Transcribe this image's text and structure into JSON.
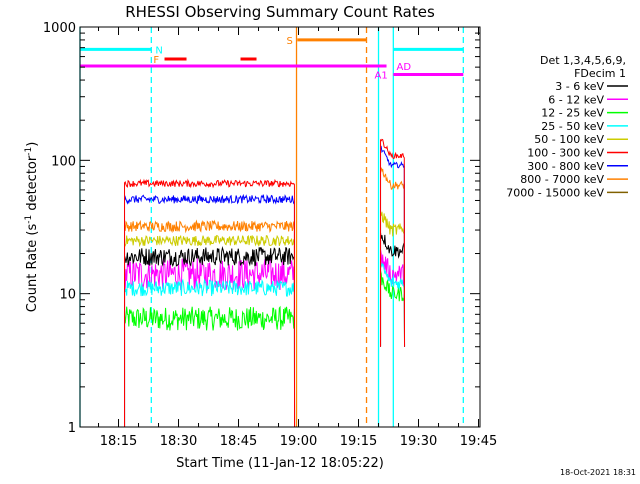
{
  "chart_data": {
    "type": "line",
    "title": "RHESSI Observing Summary Count Rates",
    "xlabel": "Start Time (11-Jan-12 18:05:22)",
    "ylabel_main": "Count Rate (s",
    "ylabel_sup1": "-1",
    "ylabel_mid": " detector",
    "ylabel_sup2": "-1",
    "ylabel_end": ")",
    "yscale": "log",
    "xlim_minutes": [
      5.37,
      105.37
    ],
    "ylim": [
      1,
      1000
    ],
    "x_ticks": [
      {
        "label": "18:15",
        "t": 15
      },
      {
        "label": "18:30",
        "t": 30
      },
      {
        "label": "18:45",
        "t": 45
      },
      {
        "label": "19:00",
        "t": 60
      },
      {
        "label": "19:15",
        "t": 75
      },
      {
        "label": "19:30",
        "t": 90
      },
      {
        "label": "19:45",
        "t": 105
      }
    ],
    "y_ticks": [
      {
        "label": "1",
        "v": 1
      },
      {
        "label": "10",
        "v": 10
      },
      {
        "label": "100",
        "v": 100
      },
      {
        "label": "1000",
        "v": 1000
      }
    ],
    "legend": {
      "header1": "Det 1,3,4,5,6,9,",
      "header2": "FDecim 1",
      "entries": [
        {
          "label": "3 - 6 keV",
          "color": "#000000"
        },
        {
          "label": "6 - 12 keV",
          "color": "#ff00ff"
        },
        {
          "label": "12 - 25 keV",
          "color": "#00ff00"
        },
        {
          "label": "25 - 50 keV",
          "color": "#00ffff"
        },
        {
          "label": "50 - 100 keV",
          "color": "#cccc00"
        },
        {
          "label": "100 - 300 keV",
          "color": "#ff0000"
        },
        {
          "label": "300 - 800 keV",
          "color": "#0000ff"
        },
        {
          "label": "800 - 7000 keV",
          "color": "#ff8000"
        },
        {
          "label": "7000 - 15000 keV",
          "color": "#806000"
        }
      ]
    },
    "segments": [
      {
        "start": 16.5,
        "end": 59.0,
        "fall_to": 1,
        "levels": {
          "red": 67,
          "blue": 51,
          "orange": 32,
          "yellow": 25,
          "black": 19,
          "magenta": 14,
          "cyan": 11,
          "green": 6.5
        },
        "noise": {
          "red": 0.025,
          "blue": 0.03,
          "orange": 0.04,
          "yellow": 0.04,
          "black": 0.07,
          "magenta": 0.12,
          "cyan": 0.06,
          "green": 0.09
        }
      },
      {
        "start": 80.5,
        "end": 86.5,
        "fall_to": 4,
        "levels": {
          "red": 108,
          "blue": 92,
          "orange": 65,
          "yellow": 30,
          "black": 21,
          "magenta": 14,
          "cyan": 12,
          "green": 10
        },
        "noise": {
          "red": 0.02,
          "blue": 0.02,
          "orange": 0.03,
          "yellow": 0.05,
          "black": 0.05,
          "magenta": 0.08,
          "cyan": 0.05,
          "green": 0.06
        }
      }
    ],
    "vertical_lines": [
      {
        "t": 5.37,
        "color": "#00ffff",
        "style": "solid"
      },
      {
        "t": 23.2,
        "color": "#00ffff",
        "style": "dashed"
      },
      {
        "t": 59.5,
        "color": "#ff8000",
        "style": "solid"
      },
      {
        "t": 77.0,
        "color": "#ff8000",
        "style": "dashed"
      },
      {
        "t": 80.0,
        "color": "#00ffff",
        "style": "solid"
      },
      {
        "t": 83.7,
        "color": "#00ffff",
        "style": "solid"
      },
      {
        "t": 101.2,
        "color": "#00ffff",
        "style": "dashed"
      }
    ],
    "flag_bars": [
      {
        "flag": "N",
        "t0": 5.37,
        "t1": 23.2,
        "v": 680,
        "color": "#00ffff"
      },
      {
        "flag": "F",
        "t0": 26.5,
        "t1": 32.0,
        "v": 575,
        "color": "#ff0000"
      },
      {
        "flag": "F",
        "t0": 45.5,
        "t1": 49.5,
        "v": 575,
        "color": "#ff0000"
      },
      {
        "flag": "S",
        "t0": 59.7,
        "t1": 77.0,
        "v": 800,
        "color": "#ff8000"
      },
      {
        "flag": "AD",
        "t0": 5.37,
        "t1": 82.0,
        "v": 510,
        "color": "#ff00ff"
      },
      {
        "flag": "AD",
        "t0": 83.7,
        "t1": 101.2,
        "v": 680,
        "color": "#00ffff"
      },
      {
        "flag": "A1",
        "t0": 83.7,
        "t1": 101.2,
        "v": 440,
        "color": "#ff00ff"
      }
    ],
    "flag_labels": [
      {
        "text": "N",
        "t": 24.2,
        "v": 680,
        "color": "#00ffff"
      },
      {
        "text": "F",
        "t": 23.7,
        "v": 575,
        "color": "#ff8000"
      },
      {
        "text": "S",
        "t": 57.0,
        "v": 800,
        "color": "#ff8000"
      },
      {
        "text": "AD",
        "t": 84.5,
        "v": 510,
        "color": "#ff00ff"
      },
      {
        "text": "A1",
        "t": 79.0,
        "v": 440,
        "color": "#ff00ff"
      }
    ]
  },
  "footer": {
    "timestamp": "18-Oct-2021 18:31"
  }
}
